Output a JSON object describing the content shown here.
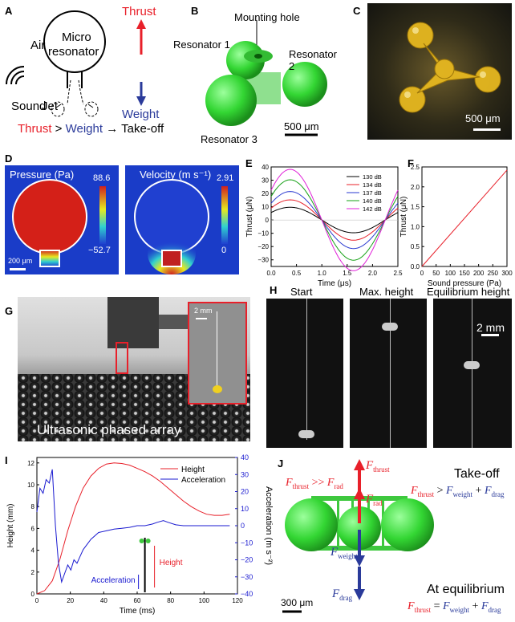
{
  "labels": {
    "A": "A",
    "B": "B",
    "C": "C",
    "D": "D",
    "E": "E",
    "F": "F",
    "G": "G",
    "H": "H",
    "I": "I",
    "J": "J"
  },
  "panelA": {
    "air": "Air",
    "micro": "Micro",
    "resonator": "resonator",
    "sound": "Sound",
    "jet": "Jet",
    "thrust": "Thrust",
    "weight": "Weight",
    "eq_thrust": "Thrust",
    "eq_gt": " > ",
    "eq_weight": "Weight",
    "eq_rest": " → Take-off",
    "colors": {
      "thrust": "#e8202a",
      "weight": "#2a3a9a"
    }
  },
  "panelB": {
    "mounting_hole": "Mounting hole",
    "r1": "Resonator 1",
    "r2": "Resonator 2",
    "r3": "Resonator 3",
    "scale": "500 μm"
  },
  "panelC": {
    "scale": "500 μm"
  },
  "panelD": {
    "pressure_title": "Pressure (Pa)",
    "pressure_max": "88.6",
    "pressure_min": "−52.7",
    "velocity_title": "Velocity (m s⁻¹)",
    "velocity_max": "2.91",
    "velocity_min": "0",
    "scale": "200 μm"
  },
  "panelG": {
    "caption": "Ultrasonic phased array",
    "inset_scale": "2 mm"
  },
  "panelH": {
    "start": "Start",
    "max": "Max. height",
    "eq": "Equilibrium height",
    "scale": "2 mm"
  },
  "panelJ": {
    "takeoff": "Take-off",
    "at_eq": "At equilibrium",
    "scale": "300 μm",
    "F": "F",
    "thrust": "thrust",
    "rad": "rad",
    "weight": "weight",
    "drag": "drag",
    "gg": " >> ",
    "gt": " > ",
    "plus": " + ",
    "eq": " = "
  },
  "chart_data": [
    {
      "id": "E",
      "type": "line",
      "xlabel": "Time (μs)",
      "ylabel": "Thrust (μN)",
      "xlim": [
        0,
        2.5
      ],
      "ylim": [
        -35,
        40
      ],
      "xticks": [
        "0.0",
        "0.5",
        "1.0",
        "1.5",
        "2.0",
        "2.5"
      ],
      "yticks": [
        "−30",
        "−20",
        "−10",
        "0",
        "10",
        "20",
        "30",
        "40"
      ],
      "legend_position": "top-right",
      "series": [
        {
          "name": "130 dB",
          "color": "#000000",
          "amplitude": 9.6
        },
        {
          "name": "134 dB",
          "color": "#e8202a",
          "amplitude": 15.2
        },
        {
          "name": "137 dB",
          "color": "#2a3ad0",
          "amplitude": 21.5
        },
        {
          "name": "140 dB",
          "color": "#16a016",
          "amplitude": 30.3
        },
        {
          "name": "142 dB",
          "color": "#e020d8",
          "amplitude": 38.2
        }
      ],
      "period_us": 2.5,
      "offset_fraction": 0.1
    },
    {
      "id": "F",
      "type": "line",
      "xlabel": "Sound pressure (Pa)",
      "ylabel": "Thrust (μN)",
      "xlim": [
        0,
        300
      ],
      "ylim": [
        0,
        2.5
      ],
      "xticks": [
        "0",
        "50",
        "100",
        "150",
        "200",
        "250",
        "300"
      ],
      "yticks": [
        "0.0",
        "0.5",
        "1.0",
        "1.5",
        "2.0",
        "2.5"
      ],
      "series": [
        {
          "name": "",
          "color": "#e8202a",
          "x": [
            0,
            300
          ],
          "y": [
            0,
            2.42
          ]
        }
      ]
    },
    {
      "id": "I",
      "type": "line",
      "xlabel": "Time (ms)",
      "ylabel": "Height (mm)",
      "y2label": "Acceleration (m s⁻²)",
      "xlim": [
        0,
        130
      ],
      "ylim": [
        0,
        12.5
      ],
      "y2lim": [
        -40,
        40
      ],
      "xticks": [
        "0",
        "20",
        "40",
        "60",
        "80",
        "100",
        "120"
      ],
      "yticks": [
        "0",
        "2",
        "4",
        "6",
        "8",
        "10",
        "12"
      ],
      "y2ticks": [
        "−40",
        "−30",
        "−20",
        "−10",
        "0",
        "10",
        "20",
        "30",
        "40"
      ],
      "legend_position": "top-right",
      "series": [
        {
          "name": "Height",
          "color": "#e8202a",
          "axis": "left",
          "x": [
            0,
            5,
            10,
            15,
            20,
            25,
            30,
            35,
            40,
            45,
            50,
            55,
            60,
            65,
            70,
            75,
            80,
            85,
            90,
            95,
            100,
            105,
            110,
            115,
            120,
            125
          ],
          "y": [
            0,
            0.3,
            1.2,
            3.2,
            5.8,
            8.0,
            9.7,
            10.8,
            11.5,
            11.9,
            12.0,
            11.95,
            11.8,
            11.5,
            11.2,
            10.8,
            10.3,
            9.7,
            9.1,
            8.5,
            8.0,
            7.6,
            7.3,
            7.2,
            7.2,
            7.3
          ]
        },
        {
          "name": "Acceleration",
          "color": "#1a1ad0",
          "axis": "right",
          "x": [
            0,
            2,
            4,
            6,
            8,
            10,
            12,
            14,
            16,
            18,
            20,
            22,
            24,
            26,
            28,
            30,
            35,
            40,
            45,
            50,
            55,
            60,
            65,
            70,
            75,
            78,
            82,
            85,
            90,
            95,
            100,
            110,
            120,
            125
          ],
          "y": [
            8,
            22,
            19,
            27,
            25,
            33,
            0,
            -22,
            -33,
            -28,
            -23,
            -26,
            -20,
            -22,
            -18,
            -14,
            -8,
            -4,
            -3,
            -2,
            -1.5,
            -1,
            0,
            0,
            1,
            2,
            3,
            2,
            0.5,
            0,
            0,
            0,
            0,
            0
          ]
        }
      ],
      "inset": {
        "acceleration": "Acceleration",
        "height": "Height"
      }
    }
  ]
}
